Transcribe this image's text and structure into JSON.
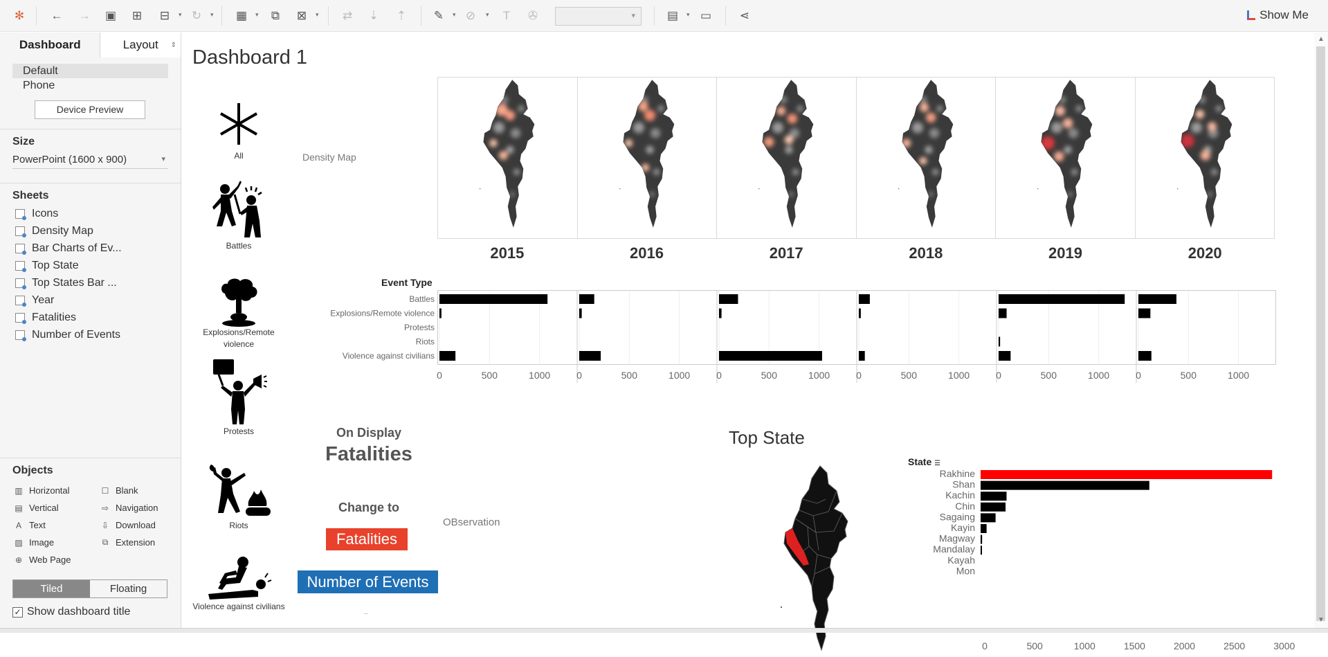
{
  "toolbar": {
    "show_me": "Show Me"
  },
  "sidebar": {
    "tabs": [
      "Dashboard",
      "Layout"
    ],
    "device_items": [
      "Default",
      "Phone"
    ],
    "device_preview": "Device Preview",
    "size_title": "Size",
    "size_value": "PowerPoint (1600 x 900)",
    "sheets_title": "Sheets",
    "sheets": [
      "Icons",
      "Density Map",
      "Bar Charts of Ev...",
      "Top State",
      "Top States Bar ...",
      "Year",
      "Fatalities",
      "Number of Events"
    ],
    "objects_title": "Objects",
    "objects": [
      {
        "label": "Horizontal",
        "icon": "▥"
      },
      {
        "label": "Blank",
        "icon": "☐"
      },
      {
        "label": "Vertical",
        "icon": "▤"
      },
      {
        "label": "Navigation",
        "icon": "⇨"
      },
      {
        "label": "Text",
        "icon": "A"
      },
      {
        "label": "Download",
        "icon": "⇩"
      },
      {
        "label": "Image",
        "icon": "▨"
      },
      {
        "label": "Extension",
        "icon": "⧉"
      },
      {
        "label": "Web Page",
        "icon": "⊕"
      }
    ],
    "tiled": "Tiled",
    "floating": "Floating",
    "show_title": "Show dashboard title"
  },
  "dashboard": {
    "title": "Dashboard 1",
    "icons": [
      {
        "label": "All"
      },
      {
        "label": "Battles"
      },
      {
        "label": "Explosions/Remote violence"
      },
      {
        "label": "Protests"
      },
      {
        "label": "Riots"
      },
      {
        "label": "Violence against civilians"
      }
    ],
    "density_label": "Density Map",
    "years": [
      "2015",
      "2016",
      "2017",
      "2018",
      "2019",
      "2020"
    ],
    "on_display": "On Display",
    "on_display_value": "Fatalities",
    "change_to": "Change to",
    "fatalities_button": "Fatalities",
    "events_button": "Number of Events",
    "dots": "..",
    "observation": "OBservation",
    "top_state_title": "Top State",
    "state_header": "State"
  },
  "chart_data": [
    {
      "type": "bar",
      "title": "",
      "ylabel": "Event Type",
      "categories": [
        "Battles",
        "Explosions/Remote violence",
        "Protests",
        "Riots",
        "Violence against civilians"
      ],
      "ticks": [
        0,
        500,
        1000
      ],
      "xlim": [
        0,
        1300
      ],
      "panels": [
        {
          "year": "2015",
          "values": [
            1080,
            20,
            0,
            0,
            160
          ]
        },
        {
          "year": "2016",
          "values": [
            150,
            25,
            0,
            0,
            215
          ]
        },
        {
          "year": "2017",
          "values": [
            190,
            25,
            0,
            0,
            1030
          ]
        },
        {
          "year": "2018",
          "values": [
            110,
            20,
            0,
            0,
            60
          ]
        },
        {
          "year": "2019",
          "values": [
            1260,
            80,
            0,
            15,
            120
          ]
        },
        {
          "year": "2020",
          "values": [
            380,
            120,
            0,
            0,
            130
          ]
        }
      ],
      "bar_color": "#000000"
    },
    {
      "type": "bar",
      "title": "Top State",
      "ylabel": "State",
      "categories": [
        "Rakhine",
        "Shan",
        "Kachin",
        "Chin",
        "Sagaing",
        "Kayin",
        "Magway",
        "Mandalay",
        "Kayah",
        "Mon"
      ],
      "values": [
        2920,
        1690,
        260,
        250,
        150,
        60,
        15,
        8,
        0,
        0
      ],
      "ticks": [
        0,
        500,
        1000,
        1500,
        2000,
        2500,
        3000
      ],
      "xlim": [
        0,
        3050
      ],
      "highlight": "Rakhine",
      "highlight_color": "#ff0000",
      "bar_color": "#000000"
    }
  ]
}
